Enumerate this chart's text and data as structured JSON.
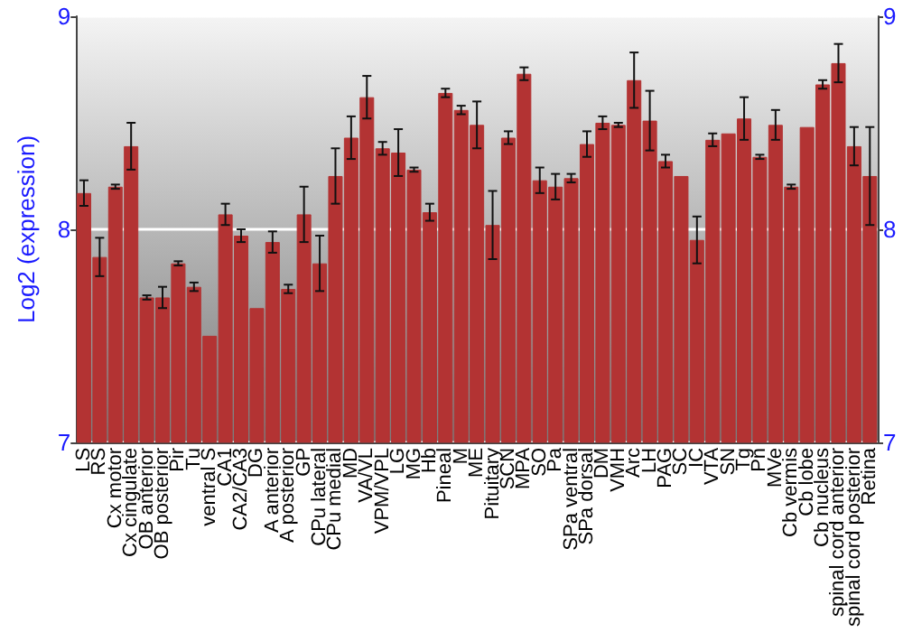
{
  "chart_data": {
    "type": "bar",
    "ylabel": "Log2 (expression)",
    "categories": [
      "LS",
      "RS",
      "Cx motor",
      "Cx cingulate",
      "OB anterior",
      "OB posterior",
      "Pir",
      "Tu",
      "ventral S",
      "CA1",
      "CA2/CA3",
      "DG",
      "A anterior",
      "A posterior",
      "GP",
      "CPu lateral",
      "CPu medial",
      "MD",
      "VA/VL",
      "VPM/VPL",
      "LG",
      "MG",
      "Hb",
      "Pineal",
      "M",
      "ME",
      "Pituitary",
      "SCN",
      "MPA",
      "SO",
      "Pa",
      "SPa ventral",
      "SPa dorsal",
      "DM",
      "VMH",
      "Arc",
      "LH",
      "PAG",
      "SC",
      "IC",
      "VTA",
      "SN",
      "Tg",
      "Pn",
      "MVe",
      "Cb vermis",
      "Cb lobe",
      "Cb nucleus",
      "spinal cord anterior",
      "spinal cord posterior",
      "Retina"
    ],
    "values": [
      8.17,
      7.87,
      8.2,
      8.39,
      7.68,
      7.68,
      7.84,
      7.73,
      7.5,
      8.07,
      7.97,
      7.63,
      7.94,
      7.72,
      8.07,
      7.84,
      8.25,
      8.43,
      8.62,
      8.38,
      8.36,
      8.28,
      8.08,
      8.64,
      8.56,
      8.49,
      8.02,
      8.43,
      8.73,
      8.23,
      8.2,
      8.24,
      8.4,
      8.5,
      8.49,
      8.7,
      8.51,
      8.32,
      8.25,
      7.95,
      8.42,
      8.45,
      8.52,
      8.34,
      8.49,
      8.2,
      8.48,
      8.68,
      8.78,
      8.39,
      8.25
    ],
    "errors": [
      0.06,
      0.09,
      0.01,
      0.11,
      0.01,
      0.05,
      0.01,
      0.02,
      null,
      0.05,
      0.03,
      null,
      0.05,
      0.02,
      0.13,
      0.13,
      0.13,
      0.1,
      0.1,
      0.03,
      0.11,
      0.01,
      0.04,
      0.02,
      0.02,
      0.11,
      0.16,
      0.03,
      0.03,
      0.06,
      0.06,
      0.02,
      0.06,
      0.03,
      0.01,
      0.13,
      0.14,
      0.03,
      null,
      0.11,
      0.03,
      null,
      0.1,
      0.01,
      0.07,
      0.01,
      null,
      0.02,
      0.09,
      0.09,
      0.23
    ],
    "color": "#b33333",
    "ylim": [
      7,
      9
    ],
    "yticks": [
      7,
      8,
      9
    ],
    "y2lim": [
      7,
      9
    ],
    "y2ticks": [
      7,
      8,
      9
    ],
    "grid": "y"
  }
}
